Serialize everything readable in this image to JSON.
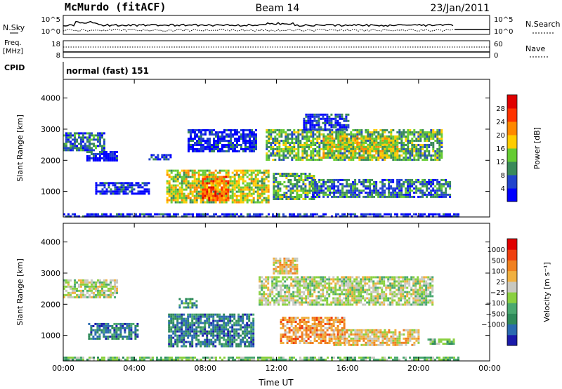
{
  "header": {
    "station": "McMurdo (fitACF)",
    "beam": "Beam 14",
    "date": "23/Jan/2011"
  },
  "top_panel": {
    "left_label": "N.Sky",
    "right_label": "N.Search",
    "left_ticks": [
      "10^5",
      "10^0"
    ],
    "right_ticks": [
      "10^5",
      "10^0"
    ]
  },
  "freq_panel": {
    "left_label_1": "Freq.",
    "left_label_2": "[MHz]",
    "right_label": "Nave",
    "left_ticks": [
      "18",
      "8"
    ],
    "right_ticks": [
      "60",
      "0"
    ]
  },
  "cpid": {
    "label": "CPID",
    "value": "normal (fast) 151"
  },
  "chart_data": [
    {
      "type": "heatmap",
      "name": "power",
      "ylabel": "Slant Range [km]",
      "xlabel": "",
      "ylim": [
        180,
        4600
      ],
      "yticks": [
        "1000",
        "2000",
        "3000",
        "4000"
      ],
      "xticks": [
        "00:00",
        "04:00",
        "08:00",
        "12:00",
        "16:00",
        "20:00",
        "00:00"
      ],
      "colorbar_label": "Power [dB]",
      "colorbar_ticks": [
        "4",
        "8",
        "12",
        "16",
        "20",
        "24",
        "28"
      ],
      "colorbar_colors": [
        "#0000ff",
        "#2244cc",
        "#3a8a5a",
        "#66cc33",
        "#ffcc00",
        "#ff8800",
        "#ff3300",
        "#e00000"
      ],
      "regions": [
        {
          "t0": 0.0,
          "t1": 2.3,
          "r0": 2300,
          "r1": 2900,
          "level": 2
        },
        {
          "t0": 1.3,
          "t1": 3.0,
          "r0": 2000,
          "r1": 2300,
          "level": 1
        },
        {
          "t0": 1.8,
          "t1": 4.8,
          "r0": 900,
          "r1": 1300,
          "level": 1
        },
        {
          "t0": 4.8,
          "t1": 6.0,
          "r0": 2000,
          "r1": 2200,
          "level": 1
        },
        {
          "t0": 5.8,
          "t1": 11.6,
          "r0": 650,
          "r1": 1700,
          "level": 4
        },
        {
          "t0": 7.8,
          "t1": 9.3,
          "r0": 700,
          "r1": 1500,
          "level": 6
        },
        {
          "t0": 7.0,
          "t1": 10.8,
          "r0": 2300,
          "r1": 3000,
          "level": 1
        },
        {
          "t0": 11.4,
          "t1": 21.3,
          "r0": 2000,
          "r1": 3000,
          "level": 3
        },
        {
          "t0": 14.6,
          "t1": 18.8,
          "r0": 2100,
          "r1": 2800,
          "level": 4
        },
        {
          "t0": 11.8,
          "t1": 14.2,
          "r0": 750,
          "r1": 1600,
          "level": 3
        },
        {
          "t0": 14.0,
          "t1": 21.8,
          "r0": 800,
          "r1": 1400,
          "level": 2
        },
        {
          "t0": 13.5,
          "t1": 16.0,
          "r0": 3000,
          "r1": 3500,
          "level": 1
        },
        {
          "t0": 0.0,
          "t1": 22.2,
          "r0": 200,
          "r1": 300,
          "level": 1
        }
      ]
    },
    {
      "type": "heatmap",
      "name": "velocity",
      "ylabel": "Slant Range [km]",
      "xlabel": "Time UT",
      "ylim": [
        180,
        4600
      ],
      "yticks": [
        "1000",
        "2000",
        "3000",
        "4000"
      ],
      "xticks": [
        "00:00",
        "04:00",
        "08:00",
        "12:00",
        "16:00",
        "20:00",
        "00:00"
      ],
      "colorbar_label": "Velocity [m s⁻¹]",
      "colorbar_ticks": [
        "1000",
        "500",
        "100",
        "25",
        "−25",
        "−100",
        "−500",
        "−1000"
      ],
      "colorbar_colors": [
        "#1a1aaa",
        "#2a6ab0",
        "#2f8a5a",
        "#4aa870",
        "#8ad040",
        "#c8c8c0",
        "#f0b040",
        "#f08020",
        "#f04010",
        "#e00000"
      ],
      "regions": [
        {
          "t0": 0.0,
          "t1": 3.0,
          "r0": 2200,
          "r1": 2800,
          "level": 5
        },
        {
          "t0": 1.4,
          "t1": 4.2,
          "r0": 900,
          "r1": 1400,
          "level": 2
        },
        {
          "t0": 5.9,
          "t1": 10.7,
          "r0": 650,
          "r1": 1700,
          "level": 2
        },
        {
          "t0": 6.5,
          "t1": 7.5,
          "r0": 1900,
          "r1": 2200,
          "level": 3
        },
        {
          "t0": 11.0,
          "t1": 20.8,
          "r0": 2000,
          "r1": 2900,
          "level": 5
        },
        {
          "t0": 12.2,
          "t1": 15.8,
          "r0": 750,
          "r1": 1600,
          "level": 7
        },
        {
          "t0": 15.2,
          "t1": 20.0,
          "r0": 700,
          "r1": 1200,
          "level": 6
        },
        {
          "t0": 11.8,
          "t1": 13.2,
          "r0": 3000,
          "r1": 3500,
          "level": 6
        },
        {
          "t0": 20.5,
          "t1": 22.0,
          "r0": 700,
          "r1": 900,
          "level": 4
        },
        {
          "t0": 0.0,
          "t1": 22.2,
          "r0": 200,
          "r1": 320,
          "level": 4
        }
      ]
    }
  ]
}
